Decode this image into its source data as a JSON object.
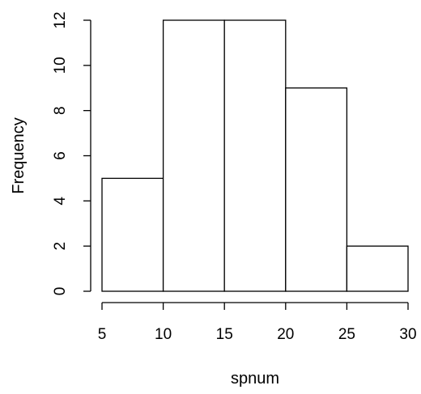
{
  "chart_data": {
    "type": "bar",
    "title": "",
    "xlabel": "spnum",
    "ylabel": "Frequency",
    "bins": [
      {
        "from": 5,
        "to": 10,
        "count": 5
      },
      {
        "from": 10,
        "to": 15,
        "count": 12
      },
      {
        "from": 15,
        "to": 20,
        "count": 12
      },
      {
        "from": 20,
        "to": 25,
        "count": 9
      },
      {
        "from": 25,
        "to": 30,
        "count": 2
      }
    ],
    "xticks": [
      5,
      10,
      15,
      20,
      25,
      30
    ],
    "yticks": [
      0,
      2,
      4,
      6,
      8,
      10,
      12
    ],
    "xlim": [
      5,
      30
    ],
    "ylim": [
      0,
      12
    ],
    "grid": false,
    "legend": "none",
    "colors": {
      "bar_fill": "#ffffff",
      "bar_stroke": "#000000"
    }
  }
}
